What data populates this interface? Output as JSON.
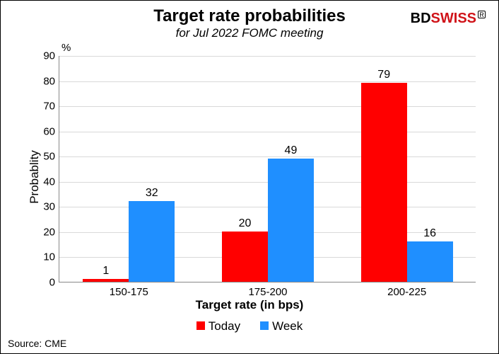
{
  "chart": {
    "type": "bar",
    "title": "Target rate probabilities",
    "subtitle": "for Jul 2022 FOMC meeting",
    "y_unit": "%",
    "y_axis_label": "Probablity",
    "x_axis_label": "Target rate (in bps)",
    "categories": [
      "150-175",
      "175-200",
      "200-225"
    ],
    "series": [
      {
        "name": "Today",
        "color": "#ff0000",
        "values": [
          1,
          20,
          79
        ]
      },
      {
        "name": "Week",
        "color": "#1f8fff",
        "values": [
          32,
          49,
          16
        ]
      }
    ],
    "ylim": [
      0,
      90
    ],
    "ytick_step": 10,
    "bar_width": 0.33,
    "background_color": "#ffffff",
    "grid_color": "#d9d9d9",
    "title_fontsize": 24,
    "subtitle_fontsize": 17,
    "label_fontsize": 17,
    "tick_fontsize": 15,
    "datalabel_fontsize": 16,
    "legend_fontsize": 17
  },
  "logo": {
    "part1": "BD",
    "part2": "SWISS",
    "reg": "R",
    "part1_color": "#000000",
    "part2_color": "#d01319"
  },
  "source": {
    "label": "Source: CME"
  }
}
